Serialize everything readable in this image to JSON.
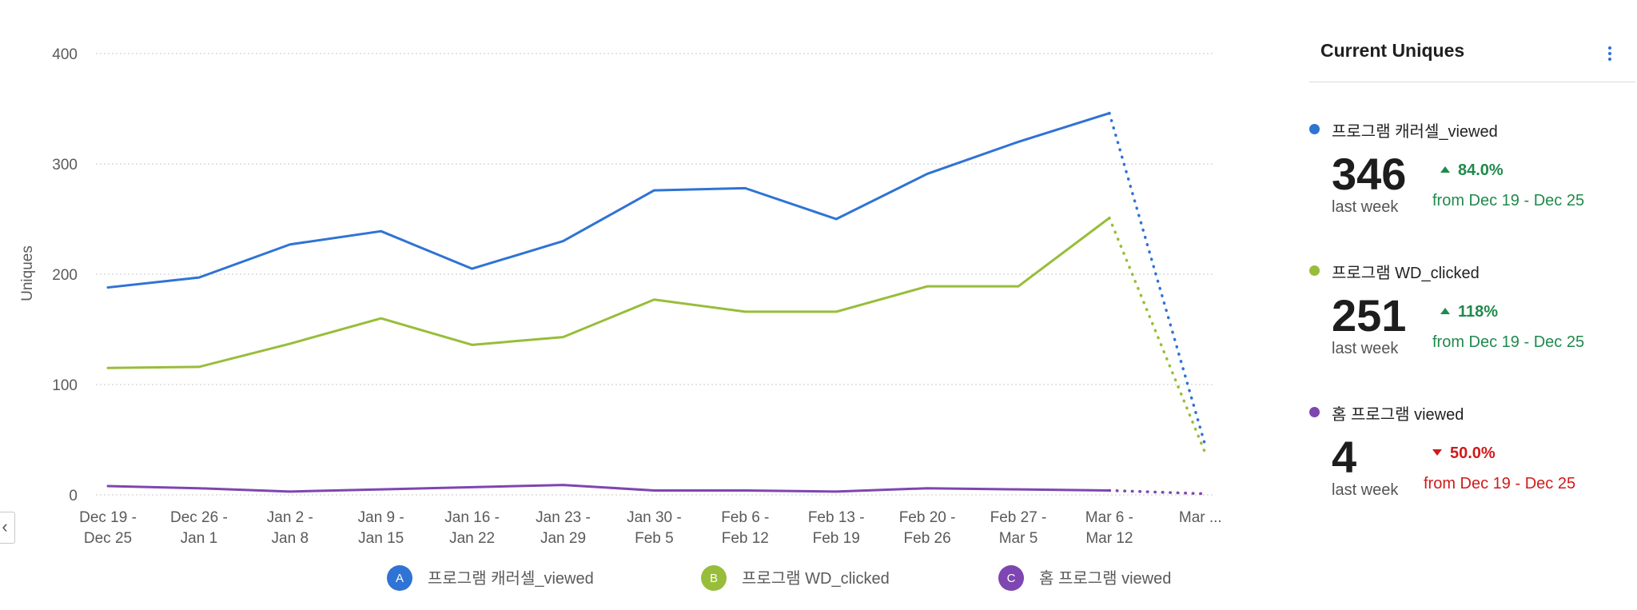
{
  "colors": {
    "series_a": "#2f73d4",
    "series_b": "#98bd3a",
    "series_c": "#7e46b1",
    "up": "#1f8a4c",
    "down": "#d11a1a"
  },
  "chart_data": {
    "type": "line",
    "title": "",
    "xlabel": "",
    "ylabel": "Uniques",
    "ylim": [
      0,
      400
    ],
    "yticks": [
      "0",
      "100",
      "200",
      "300",
      "400"
    ],
    "categories": [
      [
        "Dec 19 -",
        "Dec 25"
      ],
      [
        "Dec 26 -",
        "Jan 1"
      ],
      [
        "Jan 2 -",
        "Jan 8"
      ],
      [
        "Jan 9 -",
        "Jan 15"
      ],
      [
        "Jan 16 -",
        "Jan 22"
      ],
      [
        "Jan 23 -",
        "Jan 29"
      ],
      [
        "Jan 30 -",
        "Feb 5"
      ],
      [
        "Feb 6 -",
        "Feb 12"
      ],
      [
        "Feb 13 -",
        "Feb 19"
      ],
      [
        "Feb 20 -",
        "Feb 26"
      ],
      [
        "Feb 27 -",
        "Mar 5"
      ],
      [
        "Mar 6 -",
        "Mar 12"
      ],
      [
        "Mar ...",
        ""
      ]
    ],
    "incomplete_last_period": true,
    "series": [
      {
        "letter": "A",
        "name": "프로그램 캐러셀_viewed",
        "color": "#2f73d4",
        "values": [
          188,
          197,
          227,
          239,
          205,
          230,
          276,
          278,
          250,
          291,
          320,
          346,
          45
        ]
      },
      {
        "letter": "B",
        "name": "프로그램 WD_clicked",
        "color": "#98bd3a",
        "values": [
          115,
          116,
          137,
          160,
          136,
          143,
          177,
          166,
          166,
          189,
          189,
          251,
          38
        ]
      },
      {
        "letter": "C",
        "name": "홈 프로그램 viewed",
        "color": "#7e46b1",
        "values": [
          8,
          6,
          3,
          5,
          7,
          9,
          4,
          4,
          3,
          6,
          5,
          4,
          1
        ]
      }
    ]
  },
  "panel": {
    "title": "Current Uniques",
    "metrics": [
      {
        "name": "프로그램 캐러셀_viewed",
        "value": "346",
        "sub": "last week",
        "change": "84.0%",
        "direction": "up",
        "from": "from Dec 19 - Dec 25",
        "color": "#2f73d4"
      },
      {
        "name": "프로그램 WD_clicked",
        "value": "251",
        "sub": "last week",
        "change": "118%",
        "direction": "up",
        "from": "from Dec 19 - Dec 25",
        "color": "#98bd3a"
      },
      {
        "name": "홈 프로그램 viewed",
        "value": "4",
        "sub": "last week",
        "change": "50.0%",
        "direction": "down",
        "from": "from Dec 19 - Dec 25",
        "color": "#7e46b1"
      }
    ]
  }
}
